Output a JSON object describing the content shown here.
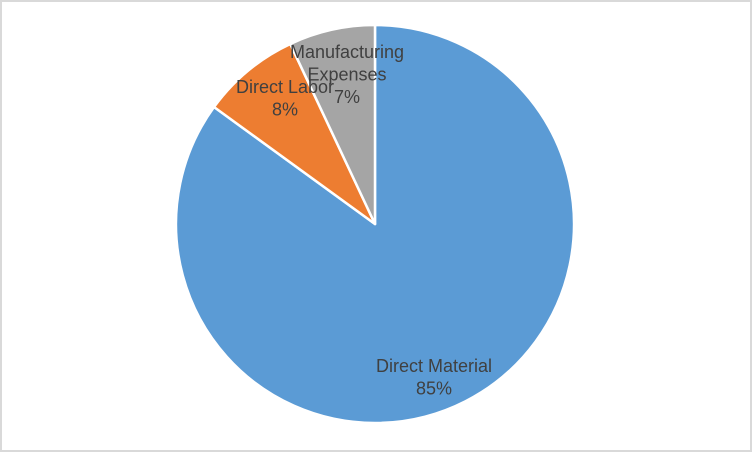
{
  "chart_data": {
    "type": "pie",
    "legend": "none",
    "start_angle_deg": 0,
    "direction": "clockwise",
    "total": 100,
    "slices": [
      {
        "name": "Direct Material",
        "value": 85,
        "percent_label": "85%",
        "color": "#5B9BD5",
        "label_lines": [
          "Direct Material",
          "85%"
        ]
      },
      {
        "name": "Direct Labor",
        "value": 8,
        "percent_label": "8%",
        "color": "#ED7D31",
        "label_lines": [
          "Direct Labor",
          "8%"
        ]
      },
      {
        "name": "Manufacturing Expenses",
        "value": 7,
        "percent_label": "7%",
        "color": "#A5A5A5",
        "label_lines": [
          "Manufacturing",
          "Expenses",
          "7%"
        ]
      }
    ],
    "slice_border_color": "#FFFFFF",
    "label_color": "#404040"
  },
  "canvas": {
    "background_color": "#FFFFFF",
    "frame_border_color": "#D9D9D9"
  }
}
